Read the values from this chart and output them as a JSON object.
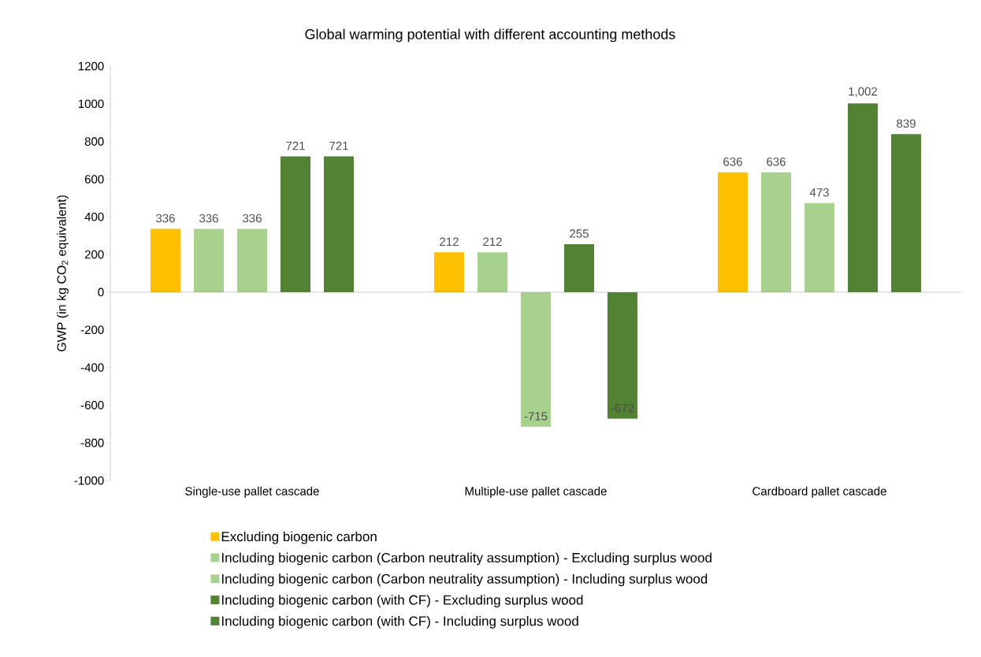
{
  "chart_data": {
    "type": "bar",
    "title": "Global warming potential with different accounting methods",
    "ylabel": "GWP (in kg CO$_{2}$ equivalent)",
    "categories": [
      "Single-use pallet cascade",
      "Multiple-use pallet cascade",
      "Cardboard pallet cascade"
    ],
    "series": [
      {
        "name": "Excluding biogenic carbon",
        "color": "#ffc000",
        "values": [
          336,
          212,
          636
        ],
        "value_labels": [
          "336",
          "212",
          "636"
        ]
      },
      {
        "name": "Including biogenic carbon (Carbon neutrality assumption) - Excluding surplus wood",
        "color": "#a9d18e",
        "values": [
          336,
          212,
          636
        ],
        "value_labels": [
          "336",
          "212",
          "636"
        ]
      },
      {
        "name": "Including biogenic carbon (Carbon neutrality assumption) - Including surplus wood",
        "color": "#a9d18e",
        "values": [
          336,
          -715,
          473
        ],
        "value_labels": [
          "336",
          "-715",
          "473"
        ]
      },
      {
        "name": "Including biogenic carbon (with CF) - Excluding surplus wood",
        "color": "#548235",
        "values": [
          721,
          255,
          1002
        ],
        "value_labels": [
          "721",
          "255",
          "1,002"
        ]
      },
      {
        "name": "Including biogenic carbon (with CF) - Including surplus wood",
        "color": "#548235",
        "values": [
          721,
          -672,
          839
        ],
        "value_labels": [
          "721",
          "-672",
          "839"
        ]
      }
    ],
    "ylim": [
      -1000,
      1200
    ],
    "yticks": [
      -1000,
      -800,
      -600,
      -400,
      -200,
      0,
      200,
      400,
      600,
      800,
      1000,
      1200
    ],
    "legend": "bottom"
  }
}
